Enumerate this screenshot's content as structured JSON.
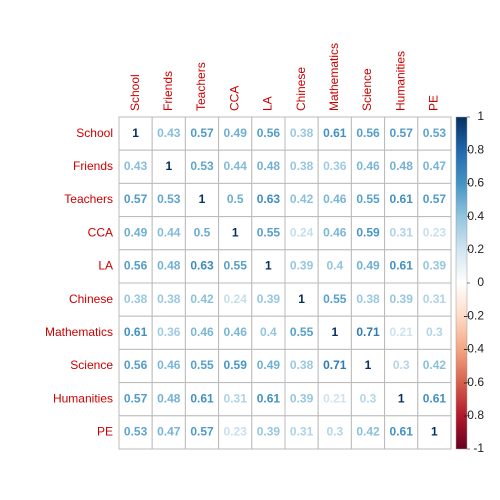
{
  "chart_data": {
    "type": "corrplot",
    "categories": [
      "School",
      "Friends",
      "Teachers",
      "CCA",
      "LA",
      "Chinese",
      "Mathematics",
      "Science",
      "Humanities",
      "PE"
    ],
    "matrix": [
      [
        1,
        0.43,
        0.57,
        0.49,
        0.56,
        0.38,
        0.61,
        0.56,
        0.57,
        0.53
      ],
      [
        0.43,
        1,
        0.53,
        0.44,
        0.48,
        0.38,
        0.36,
        0.46,
        0.48,
        0.47
      ],
      [
        0.57,
        0.53,
        1,
        0.5,
        0.63,
        0.42,
        0.46,
        0.55,
        0.61,
        0.57
      ],
      [
        0.49,
        0.44,
        0.5,
        1,
        0.55,
        0.24,
        0.46,
        0.59,
        0.31,
        0.23
      ],
      [
        0.56,
        0.48,
        0.63,
        0.55,
        1,
        0.39,
        0.4,
        0.49,
        0.61,
        0.39
      ],
      [
        0.38,
        0.38,
        0.42,
        0.24,
        0.39,
        1,
        0.55,
        0.38,
        0.39,
        0.31
      ],
      [
        0.61,
        0.36,
        0.46,
        0.46,
        0.4,
        0.55,
        1,
        0.71,
        0.21,
        0.3
      ],
      [
        0.56,
        0.46,
        0.55,
        0.59,
        0.49,
        0.38,
        0.71,
        1,
        0.3,
        0.42
      ],
      [
        0.57,
        0.48,
        0.61,
        0.31,
        0.61,
        0.39,
        0.21,
        0.3,
        1,
        0.61
      ],
      [
        0.53,
        0.47,
        0.57,
        0.23,
        0.39,
        0.31,
        0.3,
        0.42,
        0.61,
        1
      ]
    ],
    "clim": [
      -1,
      1
    ],
    "cticks": [
      -1,
      -0.8,
      -0.6,
      -0.4,
      -0.2,
      0,
      0.2,
      0.4,
      0.6,
      0.8,
      1
    ],
    "colorscale": [
      "#67001F",
      "#B2182B",
      "#D6604D",
      "#F4A582",
      "#FDDBC7",
      "#FFFFFF",
      "#D1E5F0",
      "#92C5DE",
      "#4393C3",
      "#2166AC",
      "#053061"
    ],
    "label_color": "#cc0000"
  }
}
